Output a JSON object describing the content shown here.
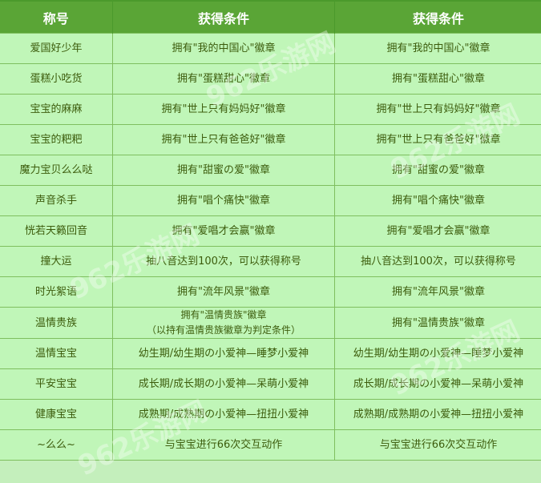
{
  "headers": [
    "称号",
    "获得条件",
    "获得条件"
  ],
  "rows": [
    {
      "title": "爱国好少年",
      "cond1": "拥有\"我的中国心\"徽章",
      "cond2": "拥有\"我的中国心\"徽章"
    },
    {
      "title": "蛋糕小吃货",
      "cond1": "拥有\"蛋糕甜心\"徽章",
      "cond2": "拥有\"蛋糕甜心\"徽章"
    },
    {
      "title": "宝宝的麻麻",
      "cond1": "拥有\"世上只有妈妈好\"徽章",
      "cond2": "拥有\"世上只有妈妈好\"徽章"
    },
    {
      "title": "宝宝的粑粑",
      "cond1": "拥有\"世上只有爸爸好\"徽章",
      "cond2": "拥有\"世上只有爸爸好\"徽章"
    },
    {
      "title": "魔力宝贝么么哒",
      "cond1": "拥有\"甜蜜の爱\"徽章",
      "cond2": "拥有\"甜蜜の爱\"徽章"
    },
    {
      "title": "声音杀手",
      "cond1": "拥有\"唱个痛快\"徽章",
      "cond2": "拥有\"唱个痛快\"徽章"
    },
    {
      "title": "恍若天籁回音",
      "cond1": "拥有\"爱唱才会赢\"徽章",
      "cond2": "拥有\"爱唱才会赢\"徽章"
    },
    {
      "title": "撞大运",
      "cond1": "抽八音达到100次，可以获得称号",
      "cond2": "抽八音达到100次，可以获得称号"
    },
    {
      "title": "时光絮语",
      "cond1": "拥有\"流年风景\"徽章",
      "cond2": "拥有\"流年风景\"徽章"
    },
    {
      "title": "温情贵族",
      "cond1": "拥有\"温情贵族\"徽章",
      "cond1_note": "（以持有温情贵族徽章为判定条件）",
      "cond2": "拥有\"温情贵族\"徽章"
    },
    {
      "title": "温情宝宝",
      "cond1": "幼生期/幼生期の小爱神—睡梦小爱神",
      "cond2": "幼生期/幼生期の小爱神—睡梦小爱神"
    },
    {
      "title": "平安宝宝",
      "cond1": "成长期/成长期の小爱神—呆萌小爱神",
      "cond2": "成长期/成长期の小爱神—呆萌小爱神"
    },
    {
      "title": "健康宝宝",
      "cond1": "成熟期/成熟期の小爱神—扭扭小爱神",
      "cond2": "成熟期/成熟期の小爱神—扭扭小爱神"
    },
    {
      "title": "~么么~",
      "cond1": "与宝宝进行66次交互动作",
      "cond2": "与宝宝进行66次交互动作"
    }
  ],
  "watermark": "962乐游网"
}
